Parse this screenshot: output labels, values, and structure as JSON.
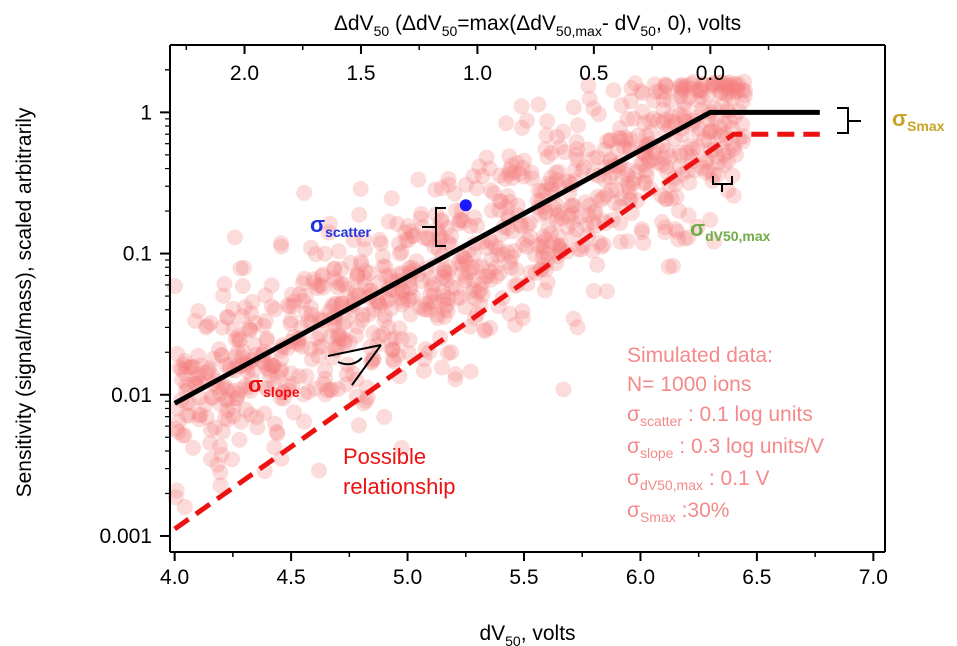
{
  "chart_data": {
    "type": "scatter",
    "x_axis": {
      "label_main": "dV",
      "label_sub": "50",
      "label_rest": ", volts",
      "range": [
        3.98,
        7.05
      ],
      "ticks": [
        4.0,
        4.5,
        5.0,
        5.5,
        6.0,
        6.5,
        7.0
      ],
      "tick_labels": [
        "4.0",
        "4.5",
        "5.0",
        "5.5",
        "6.0",
        "6.5",
        "7.0"
      ]
    },
    "top_axis": {
      "label_parts": [
        {
          "t": "ΔdV",
          "s": false
        },
        {
          "t": "50",
          "s": true
        },
        {
          "t": " (ΔdV",
          "s": false
        },
        {
          "t": "50",
          "s": true
        },
        {
          "t": "=max(ΔdV",
          "s": false
        },
        {
          "t": "50,max",
          "s": true
        },
        {
          "t": "- dV",
          "s": false
        },
        {
          "t": "50",
          "s": true
        },
        {
          "t": ", 0), volts",
          "s": false
        }
      ],
      "ticks": [
        2.0,
        1.5,
        1.0,
        0.5,
        0.0
      ],
      "tick_labels": [
        "2.0",
        "1.5",
        "1.0",
        "0.5",
        "0.0"
      ],
      "zero_at_x": 6.3
    },
    "y_axis": {
      "label": "Sensitivity (signal/mass), scaled arbitrarily",
      "scale": "log",
      "range": [
        0.00077,
        3.0
      ],
      "ticks": [
        1,
        0.1,
        0.01,
        0.001
      ],
      "tick_labels": [
        "1",
        "0.1",
        "0.01",
        "0.001"
      ]
    },
    "series": [
      {
        "style": "solid-black",
        "points": [
          [
            4.0,
            0.0087
          ],
          [
            6.3,
            1.0
          ],
          [
            6.77,
            1.0
          ]
        ]
      },
      {
        "style": "dashed-red",
        "points": [
          [
            4.0,
            0.00112
          ],
          [
            6.4,
            0.7
          ],
          [
            6.77,
            0.7
          ]
        ]
      }
    ],
    "scatter": {
      "n_points": 1000,
      "color": "#f47f7f",
      "highlight_point": {
        "x": 5.25,
        "y": 0.22,
        "color": "#1a1aff"
      }
    },
    "annotations": {
      "sigma_scatter": {
        "symbol": "σ",
        "sub": "scatter",
        "color": "#2233dd"
      },
      "sigma_slope": {
        "symbol": "σ",
        "sub": "slope",
        "color": "#ee1111"
      },
      "sigma_dv50max": {
        "symbol": "σ",
        "sub": "dV50,max",
        "color": "#70ad47"
      },
      "sigma_smax": {
        "symbol": "σ",
        "sub": "Smax",
        "color": "#c9a227"
      },
      "possible_relationship": [
        "Possible",
        "relationship"
      ],
      "possible_color": "#ee1111",
      "sim_color": "#f48a8a",
      "sim_title": "Simulated data:",
      "sim_n": "N= 1000 ions",
      "sim_rows": [
        {
          "sym": "σ",
          "sub": "scatter",
          "text": " : 0.1 log units"
        },
        {
          "sym": "σ",
          "sub": "slope",
          "text": " : 0.3 log units/V"
        },
        {
          "sym": "σ",
          "sub": "dV50,max",
          "text": " : 0.1 V"
        },
        {
          "sym": "σ",
          "sub": "Smax",
          "text": "  :30%"
        }
      ]
    }
  }
}
